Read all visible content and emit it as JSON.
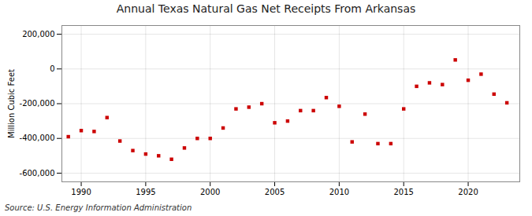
{
  "chart_data": {
    "type": "scatter",
    "title": "Annual Texas Natural Gas Net Receipts From Arkansas",
    "ylabel": "Million Cubic Feet",
    "source": "Source: U.S. Energy Information Administration",
    "x": [
      1989,
      1990,
      1991,
      1992,
      1993,
      1994,
      1995,
      1996,
      1997,
      1998,
      1999,
      2000,
      2001,
      2002,
      2003,
      2004,
      2005,
      2006,
      2007,
      2008,
      2009,
      2010,
      2011,
      2012,
      2013,
      2014,
      2015,
      2016,
      2017,
      2018,
      2019,
      2020,
      2021,
      2022,
      2023
    ],
    "values": [
      -390000,
      -355000,
      -360000,
      -280000,
      -415000,
      -470000,
      -490000,
      -500000,
      -520000,
      -455000,
      -400000,
      -400000,
      -340000,
      -230000,
      -220000,
      -200000,
      -310000,
      -300000,
      -240000,
      -240000,
      -165000,
      -215000,
      -420000,
      -260000,
      -430000,
      -430000,
      -230000,
      -100000,
      -80000,
      -90000,
      52000,
      -65000,
      -30000,
      -145000,
      -195000
    ],
    "color": "#cc0000",
    "marker": "square",
    "xlim": [
      1988.5,
      2024
    ],
    "ylim": [
      -650000,
      250000
    ],
    "xticks": [
      1990,
      1995,
      2000,
      2005,
      2010,
      2015,
      2020
    ],
    "yticks": [
      {
        "value": -600000,
        "label": "-600,000"
      },
      {
        "value": -400000,
        "label": "-400,000"
      },
      {
        "value": -200000,
        "label": "-200,000"
      },
      0,
      {
        "value": 200000,
        "label": "200,000"
      }
    ],
    "grid": true
  }
}
